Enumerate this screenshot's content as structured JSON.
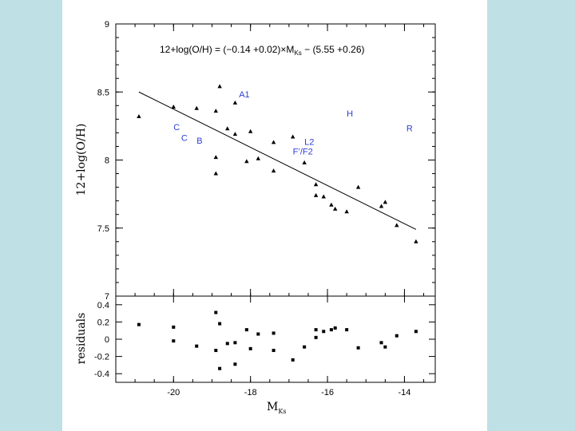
{
  "colors": {
    "background": "#bfe0e4",
    "slide": "#ffffff",
    "annotation": "#2c3fd6",
    "ink": "#000000"
  },
  "chart_data": [
    {
      "type": "scatter",
      "title": "12+log(O/H) = (−0.14 +0.02)×M",
      "title_sub": "Ks",
      "title_tail": " − (5.55 +0.26)",
      "xlabel": "",
      "ylabel": "12+log(O/H)",
      "xlim": [
        -21.5,
        -13.2
      ],
      "ylim": [
        7,
        9
      ],
      "yticks": [
        "7",
        "7.5",
        "8",
        "8.5",
        "9"
      ],
      "ytick_values": [
        7,
        7.5,
        8,
        8.5,
        9
      ],
      "series": [
        {
          "marker": "triangle",
          "x": [
            -20.9,
            -20.0,
            -19.4,
            -18.9,
            -18.8,
            -18.9,
            -18.9,
            -18.6,
            -18.4,
            -18.4,
            -18.1,
            -18.0,
            -17.8,
            -17.4,
            -17.4,
            -16.9,
            -16.6,
            -16.3,
            -16.3,
            -16.1,
            -15.9,
            -15.8,
            -15.5,
            -15.2,
            -14.6,
            -14.5,
            -14.2,
            -13.7
          ],
          "y": [
            8.32,
            8.39,
            8.38,
            8.36,
            8.54,
            8.02,
            7.9,
            8.23,
            8.42,
            8.19,
            7.99,
            8.21,
            8.01,
            8.13,
            7.92,
            8.17,
            7.98,
            7.82,
            7.74,
            7.73,
            7.67,
            7.64,
            7.62,
            7.8,
            7.66,
            7.69,
            7.52,
            7.4
          ]
        }
      ],
      "fit_line": {
        "x": [
          -20.9,
          -13.7
        ],
        "y": [
          8.5,
          7.49
        ]
      },
      "annotations": [
        {
          "text": "A1",
          "x": -18.3,
          "y": 8.46
        },
        {
          "text": "H",
          "x": -15.5,
          "y": 8.32
        },
        {
          "text": "R",
          "x": -13.95,
          "y": 8.21
        },
        {
          "text": "C",
          "x": -20.0,
          "y": 8.22
        },
        {
          "text": "C",
          "x": -19.8,
          "y": 8.14
        },
        {
          "text": "B",
          "x": -19.4,
          "y": 8.12
        },
        {
          "text": "L2",
          "x": -16.6,
          "y": 8.11
        },
        {
          "text": "F’/F2",
          "x": -16.9,
          "y": 8.04
        }
      ]
    },
    {
      "type": "scatter",
      "xlabel": "M",
      "xlabel_sub": "Ks",
      "ylabel": "residuals",
      "xlim": [
        -21.5,
        -13.2
      ],
      "ylim": [
        -0.5,
        0.5
      ],
      "xticks": [
        "-20",
        "-18",
        "-16",
        "-14"
      ],
      "xtick_values": [
        -20,
        -18,
        -16,
        -14
      ],
      "yticks": [
        "-0.4",
        "-0.2",
        "0",
        "0.2",
        "0.4"
      ],
      "ytick_values": [
        -0.4,
        -0.2,
        0,
        0.2,
        0.4
      ],
      "series": [
        {
          "marker": "square",
          "x": [
            -20.9,
            -20.0,
            -20.0,
            -19.4,
            -18.9,
            -18.8,
            -18.8,
            -18.9,
            -18.6,
            -18.4,
            -18.4,
            -18.1,
            -18.0,
            -17.8,
            -17.4,
            -17.4,
            -16.9,
            -16.6,
            -16.3,
            -16.3,
            -16.1,
            -15.9,
            -15.8,
            -15.5,
            -15.2,
            -14.6,
            -14.5,
            -14.2,
            -13.7
          ],
          "y": [
            0.17,
            -0.02,
            0.14,
            -0.08,
            0.31,
            0.18,
            -0.34,
            -0.13,
            -0.05,
            -0.29,
            -0.04,
            0.11,
            -0.11,
            0.06,
            -0.13,
            0.07,
            -0.24,
            -0.09,
            0.11,
            0.02,
            0.09,
            0.11,
            0.13,
            0.11,
            -0.1,
            -0.04,
            -0.09,
            0.04,
            0.09
          ]
        }
      ]
    }
  ]
}
